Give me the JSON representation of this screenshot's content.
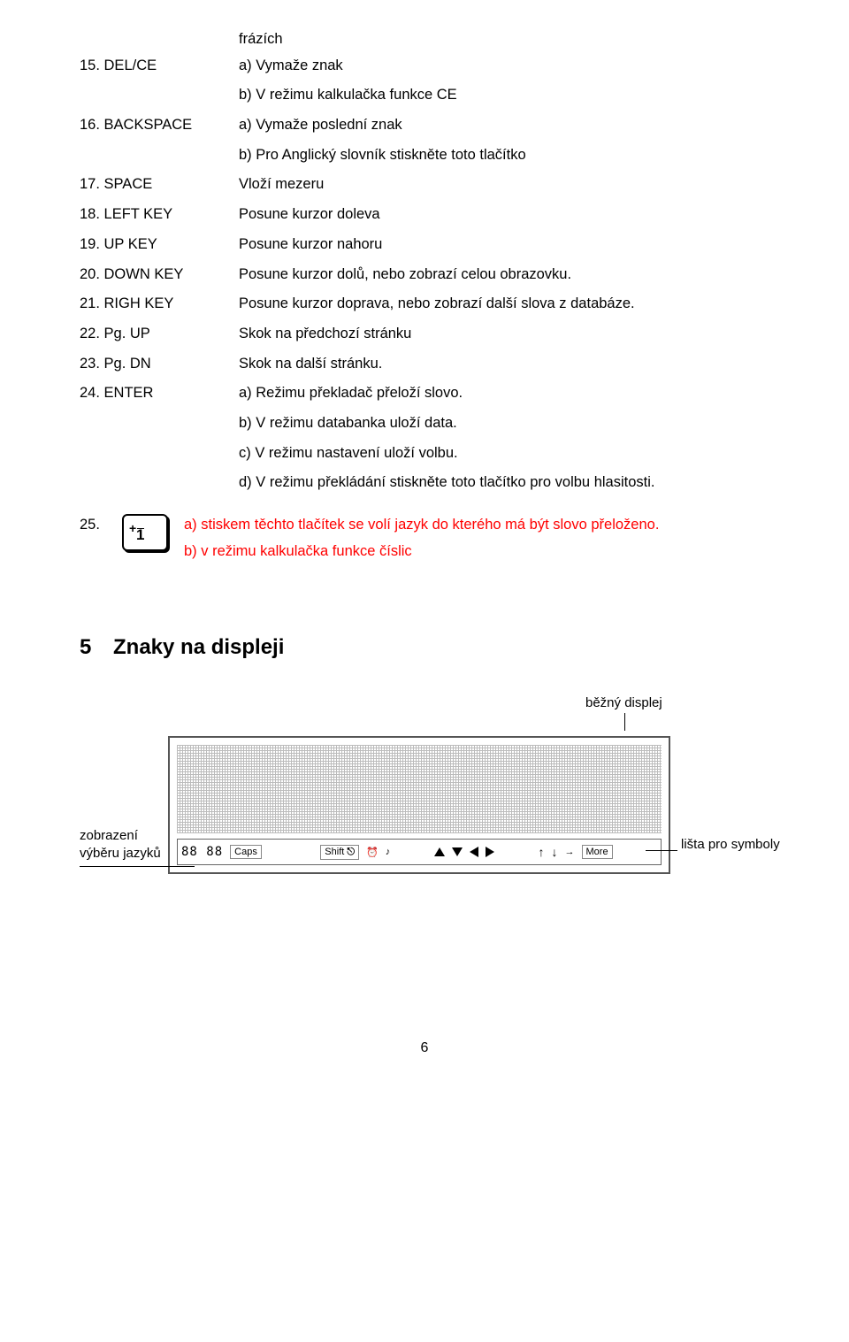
{
  "top_line": "frázích",
  "items": [
    {
      "key": "15. DEL/CE",
      "lines": [
        "a) Vymaže znak",
        "b) V režimu kalkulačka funkce CE"
      ]
    },
    {
      "key": "16. BACKSPACE",
      "lines": [
        "a) Vymaže poslední znak",
        "b) Pro Anglický slovník stiskněte toto tlačítko"
      ]
    },
    {
      "key": "17. SPACE",
      "lines": [
        "Vloží mezeru"
      ]
    },
    {
      "key": "18. LEFT KEY",
      "lines": [
        "Posune kurzor doleva"
      ]
    },
    {
      "key": "19. UP KEY",
      "lines": [
        "Posune kurzor nahoru"
      ]
    },
    {
      "key": "20. DOWN KEY",
      "lines": [
        "Posune kurzor dolů, nebo zobrazí celou obrazovku."
      ]
    },
    {
      "key": "21. RIGH KEY",
      "lines": [
        "Posune kurzor doprava, nebo zobrazí další slova z databáze."
      ]
    },
    {
      "key": "22. Pg. UP",
      "lines": [
        "Skok na předchozí stránku"
      ]
    },
    {
      "key": "23. Pg. DN",
      "lines": [
        "Skok na další stránku."
      ]
    },
    {
      "key": "24. ENTER",
      "lines": [
        "a) Režimu překladač přeloží slovo.",
        "b) V režimu databanka uloží data.",
        "c) V režimu nastavení uloží volbu.",
        "d) V režimu překládání stiskněte toto tlačítko pro volbu hlasitosti."
      ]
    }
  ],
  "item25": {
    "num": "25.",
    "lines": [
      "a) stiskem těchto tlačítek se volí jazyk do kterého má být slovo   přeloženo.",
      "b) v režimu kalkulačka funkce číslic"
    ]
  },
  "section": {
    "num": "5",
    "title": "Znaky na displeji"
  },
  "diagram": {
    "label_top": "běžný displej",
    "label_left_1": "zobrazení",
    "label_left_2": "výběru jazyků",
    "label_right": "lišta pro symboly",
    "bar": {
      "seg": "88 88",
      "caps": "Caps",
      "shift": "Shift",
      "more": "More"
    }
  },
  "pagenum": "6"
}
